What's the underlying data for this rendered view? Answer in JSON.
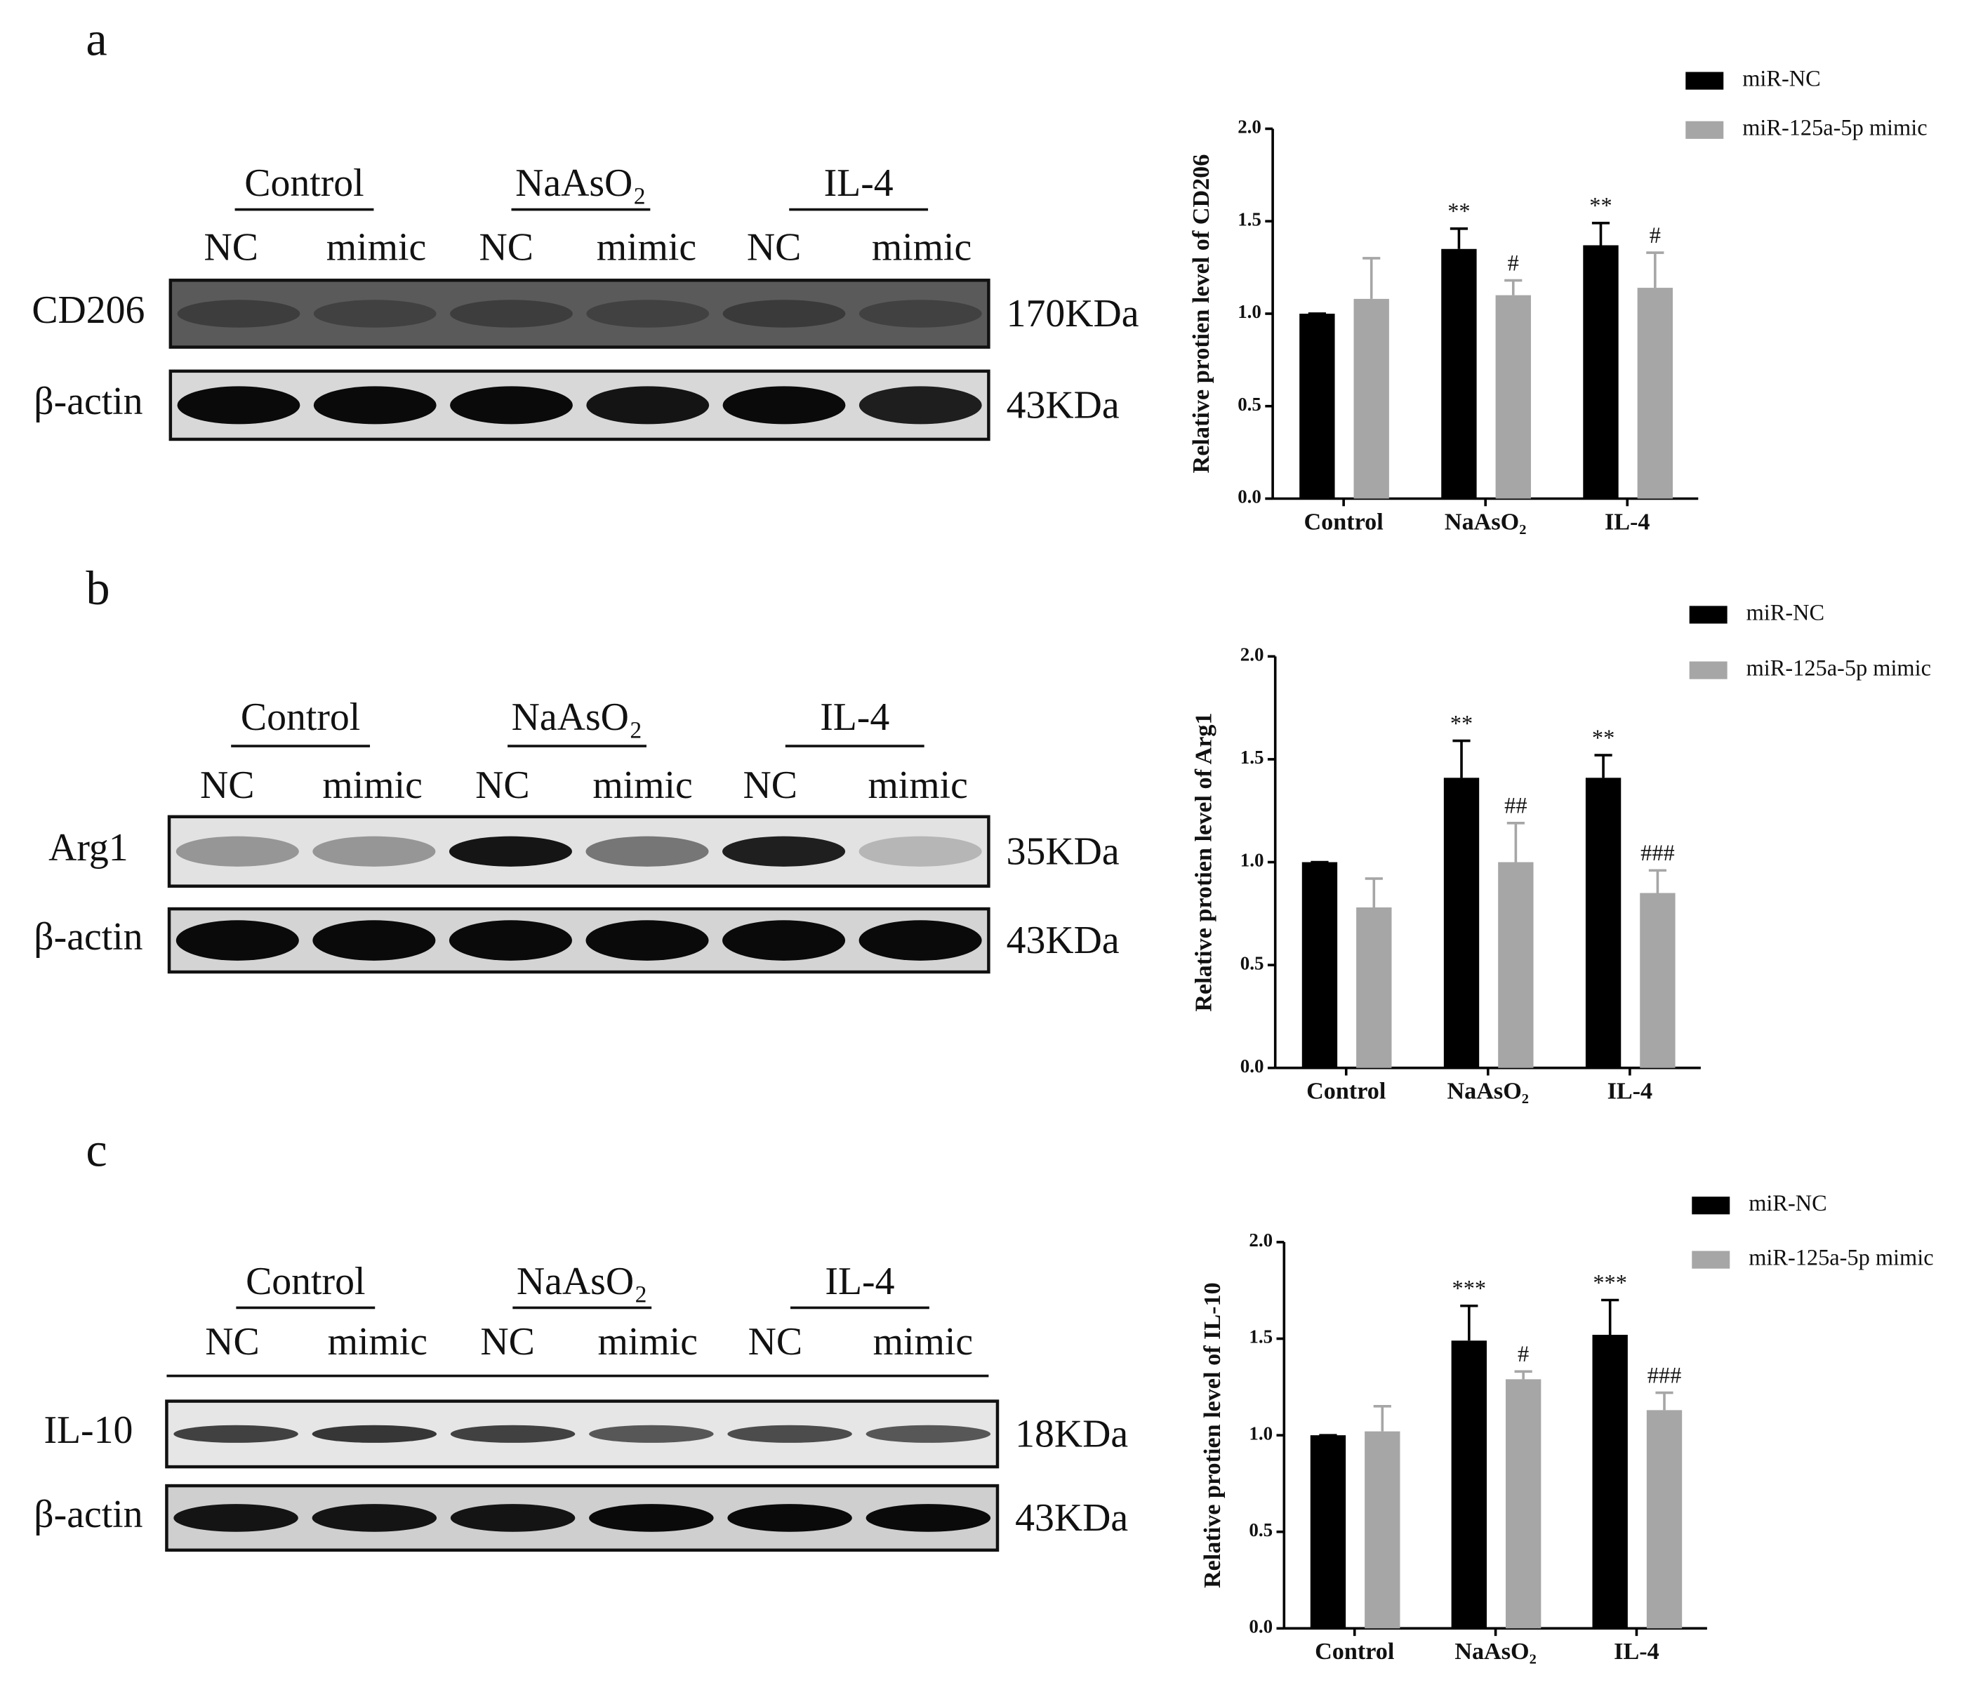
{
  "panel_labels": [
    "a",
    "b",
    "c"
  ],
  "blots": [
    {
      "groups": [
        "Control",
        "NaAsO₂",
        "IL-4"
      ],
      "lanes": [
        "NC",
        "mimic",
        "NC",
        "mimic",
        "NC",
        "mimic"
      ],
      "rows": [
        {
          "name": "CD206",
          "size": "170KDa"
        },
        {
          "name": "β-actin",
          "size": "43KDa"
        }
      ]
    },
    {
      "groups": [
        "Control",
        "NaAsO₂",
        "IL-4"
      ],
      "lanes": [
        "NC",
        "mimic",
        "NC",
        "mimic",
        "NC",
        "mimic"
      ],
      "rows": [
        {
          "name": "Arg1",
          "size": "35KDa"
        },
        {
          "name": "β-actin",
          "size": "43KDa"
        }
      ]
    },
    {
      "groups": [
        "Control",
        "NaAsO₂",
        "IL-4"
      ],
      "lanes": [
        "NC",
        "mimic",
        "NC",
        "mimic",
        "NC",
        "mimic"
      ],
      "rows": [
        {
          "name": "IL-10",
          "size": "18KDa"
        },
        {
          "name": "β-actin",
          "size": "43KDa"
        }
      ]
    }
  ],
  "chart_data": [
    {
      "type": "bar",
      "ylabel": "Relative protien level of CD206",
      "categories": [
        "Control",
        "NaAsO₂",
        "IL-4"
      ],
      "ylim": [
        0,
        2
      ],
      "yticks": [
        {
          "value": 0,
          "label": "0.0"
        },
        {
          "value": 0.5,
          "label": "0.5"
        },
        {
          "value": 1,
          "label": "1.0"
        },
        {
          "value": 1.5,
          "label": "1.5"
        },
        {
          "value": 2,
          "label": "2.0"
        }
      ],
      "series": [
        {
          "name": "miR-NC",
          "color": "#000000",
          "values": [
            1.0,
            1.35,
            1.37
          ],
          "errors": [
            0,
            0.11,
            0.12
          ],
          "annotations": [
            null,
            "**",
            "**"
          ]
        },
        {
          "name": "miR-125a-5p mimic",
          "color": "#a6a6a6",
          "values": [
            1.08,
            1.1,
            1.14
          ],
          "errors": [
            0.22,
            0.08,
            0.19
          ],
          "annotations": [
            null,
            "#",
            "#"
          ]
        }
      ]
    },
    {
      "type": "bar",
      "ylabel": "Relative protien level of Arg1",
      "categories": [
        "Control",
        "NaAsO₂",
        "IL-4"
      ],
      "ylim": [
        0,
        2
      ],
      "yticks": [
        {
          "value": 0,
          "label": "0.0"
        },
        {
          "value": 0.5,
          "label": "0.5"
        },
        {
          "value": 1,
          "label": "1.0"
        },
        {
          "value": 1.5,
          "label": "1.5"
        },
        {
          "value": 2,
          "label": "2.0"
        }
      ],
      "series": [
        {
          "name": "miR-NC",
          "color": "#000000",
          "values": [
            1.0,
            1.41,
            1.41
          ],
          "errors": [
            0,
            0.18,
            0.11
          ],
          "annotations": [
            null,
            "**",
            "**"
          ]
        },
        {
          "name": "miR-125a-5p mimic",
          "color": "#a6a6a6",
          "values": [
            0.78,
            1.0,
            0.85
          ],
          "errors": [
            0.14,
            0.19,
            0.11
          ],
          "annotations": [
            null,
            "##",
            "###"
          ]
        }
      ]
    },
    {
      "type": "bar",
      "ylabel": "Relative protien level of IL-10",
      "categories": [
        "Control",
        "NaAsO₂",
        "IL-4"
      ],
      "ylim": [
        0,
        2
      ],
      "yticks": [
        {
          "value": 0,
          "label": "0.0"
        },
        {
          "value": 0.5,
          "label": "0.5"
        },
        {
          "value": 1,
          "label": "1.0"
        },
        {
          "value": 1.5,
          "label": "1.5"
        },
        {
          "value": 2,
          "label": "2.0"
        }
      ],
      "series": [
        {
          "name": "miR-NC",
          "color": "#000000",
          "values": [
            1.0,
            1.49,
            1.52
          ],
          "errors": [
            0,
            0.18,
            0.18
          ],
          "annotations": [
            null,
            "***",
            "***"
          ]
        },
        {
          "name": "miR-125a-5p mimic",
          "color": "#a6a6a6",
          "values": [
            1.02,
            1.29,
            1.13
          ],
          "errors": [
            0.13,
            0.04,
            0.09
          ],
          "annotations": [
            null,
            "#",
            "###"
          ]
        }
      ]
    }
  ]
}
